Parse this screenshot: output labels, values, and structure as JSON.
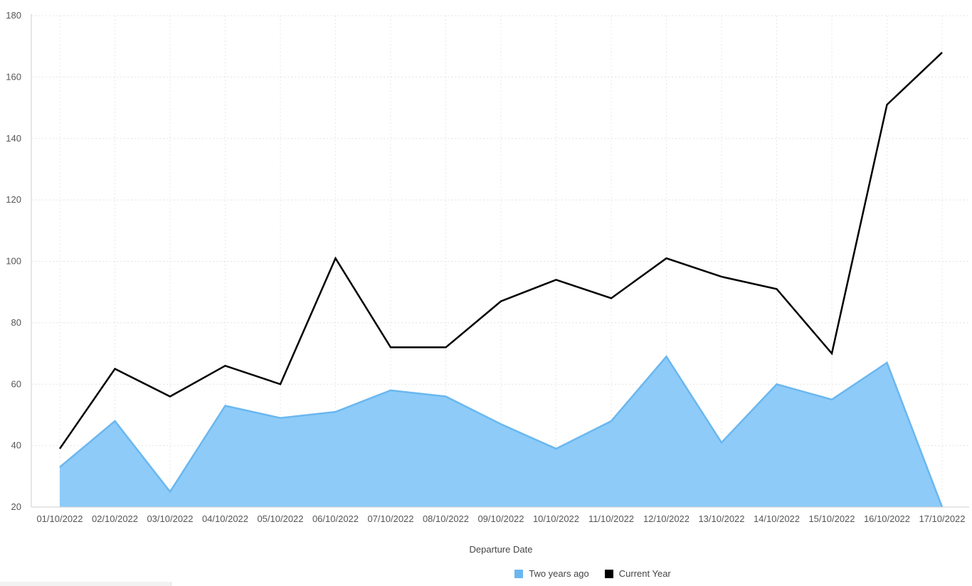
{
  "chart_data": {
    "type": "line",
    "xlabel": "Departure Date",
    "ylabel": "",
    "categories": [
      "01/10/2022",
      "02/10/2022",
      "03/10/2022",
      "04/10/2022",
      "05/10/2022",
      "06/10/2022",
      "07/10/2022",
      "08/10/2022",
      "09/10/2022",
      "10/10/2022",
      "11/10/2022",
      "12/10/2022",
      "13/10/2022",
      "14/10/2022",
      "15/10/2022",
      "16/10/2022",
      "17/10/2022"
    ],
    "ylim": [
      20,
      180
    ],
    "yticks": [
      20,
      40,
      60,
      80,
      100,
      120,
      140,
      160,
      180
    ],
    "grid": true,
    "legend_position": "bottom",
    "series": [
      {
        "name": "Two years ago",
        "kind": "area",
        "color": "#8ecbf8",
        "stroke": "#6ab7f0",
        "values": [
          33,
          48,
          25,
          53,
          49,
          51,
          58,
          56,
          47,
          39,
          48,
          69,
          41,
          60,
          55,
          67,
          20
        ]
      },
      {
        "name": "Current Year",
        "kind": "line",
        "color": "#000000",
        "values": [
          39,
          65,
          56,
          66,
          60,
          101,
          72,
          72,
          87,
          94,
          88,
          101,
          95,
          91,
          70,
          151,
          168
        ]
      }
    ]
  },
  "legend": {
    "items": [
      {
        "label": "Two years ago",
        "color": "#6ab7f0"
      },
      {
        "label": "Current Year",
        "color": "#000000"
      }
    ]
  }
}
